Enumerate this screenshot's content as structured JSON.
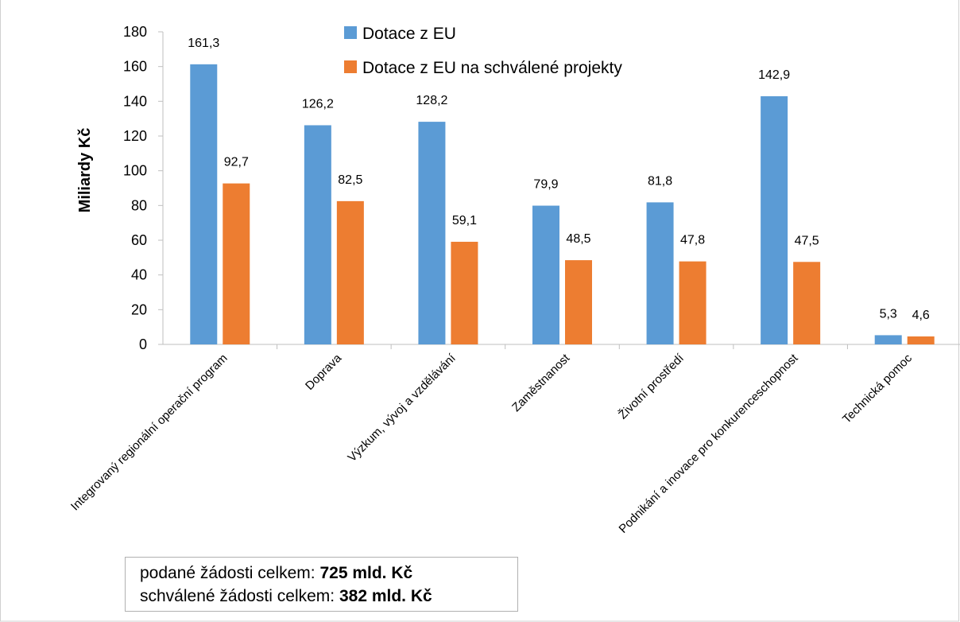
{
  "chart_data": {
    "type": "bar",
    "title": "",
    "xlabel": "",
    "ylabel": "Miliardy Kč",
    "ylim": [
      0,
      180
    ],
    "yticks": [
      "0",
      "20",
      "40",
      "60",
      "80",
      "100",
      "120",
      "140",
      "160",
      "180"
    ],
    "categories": [
      "Integrovaný regionální operační program",
      "Doprava",
      "Výzkum, vývoj a vzdělávání",
      "Zaměstnanost",
      "Životní prostředí",
      "Podnikání a inovace pro konkurenceschopnost",
      "Technická pomoc"
    ],
    "series": [
      {
        "name": "Dotace z EU",
        "color": "#5b9bd5",
        "values": [
          161.3,
          126.2,
          128.2,
          79.9,
          81.8,
          142.9,
          5.3
        ],
        "labels": [
          "161,3",
          "126,2",
          "128,2",
          "79,9",
          "81,8",
          "142,9",
          "5,3"
        ]
      },
      {
        "name": "Dotace z EU na schválené projekty",
        "color": "#ed7d31",
        "values": [
          92.7,
          82.5,
          59.1,
          48.5,
          47.8,
          47.5,
          4.6
        ],
        "labels": [
          "92,7",
          "82,5",
          "59,1",
          "48,5",
          "47,8",
          "47,5",
          "4,6"
        ]
      }
    ],
    "grid": false,
    "legend_position": "top"
  },
  "summary": {
    "line1_label": "podané žádosti celkem: ",
    "line1_value": "725 mld. Kč",
    "line2_label": "schválené žádosti celkem: ",
    "line2_value": "382 mld. Kč"
  }
}
